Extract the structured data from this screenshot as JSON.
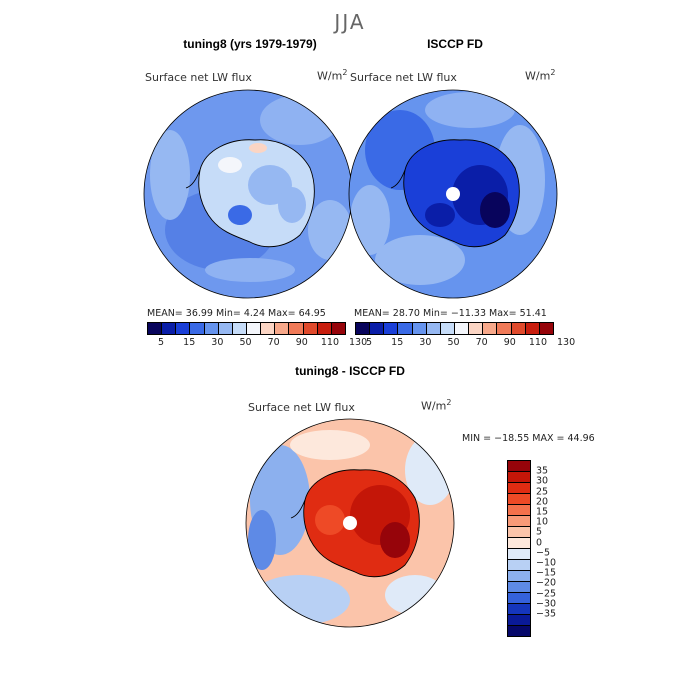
{
  "figure": {
    "season": "JJA"
  },
  "panels": {
    "model": {
      "title": "tuning8 (yrs 1979-1979)",
      "label": "Surface net LW flux",
      "unit_base": "W/m",
      "unit_exp": "2",
      "stats": "MEAN=  36.99  Min=    4.24  Max=  64.95"
    },
    "obs": {
      "title": "ISCCP FD",
      "label": "Surface net LW flux",
      "unit_base": "W/m",
      "unit_exp": "2",
      "stats": "MEAN=  28.70  Min= −11.33  Max=  51.41"
    },
    "diff": {
      "title": "tuning8 - ISCCP FD",
      "label": "Surface net LW flux",
      "unit_base": "W/m",
      "unit_exp": "2",
      "stats": "MIN = −18.55 MAX =  44.96"
    }
  },
  "colorbar_abs": {
    "labels": [
      "5",
      "15",
      "30",
      "50",
      "70",
      "90",
      "110",
      "130"
    ],
    "colors": [
      "#08045c",
      "#0a1ea8",
      "#1a3fd8",
      "#3a6ae6",
      "#6694ee",
      "#96b8f2",
      "#c6dcf8",
      "#f4f6fb",
      "#fbd5c4",
      "#f7a88a",
      "#f07a58",
      "#e04a2c",
      "#c81e0e",
      "#96040a"
    ]
  },
  "colorbar_diff": {
    "labels": [
      "35",
      "30",
      "25",
      "20",
      "15",
      "10",
      "5",
      "0",
      "−5",
      "−10",
      "−15",
      "−20",
      "−25",
      "−30",
      "−35"
    ],
    "colors": [
      "#96040a",
      "#c41608",
      "#e02c12",
      "#ee4a26",
      "#f4714c",
      "#f89a78",
      "#fbc4aa",
      "#fde8dc",
      "#dfeaf8",
      "#b8d0f4",
      "#8cb0ee",
      "#5e8ae6",
      "#3562dc",
      "#1536bc",
      "#0a1a98",
      "#06086a"
    ]
  }
}
